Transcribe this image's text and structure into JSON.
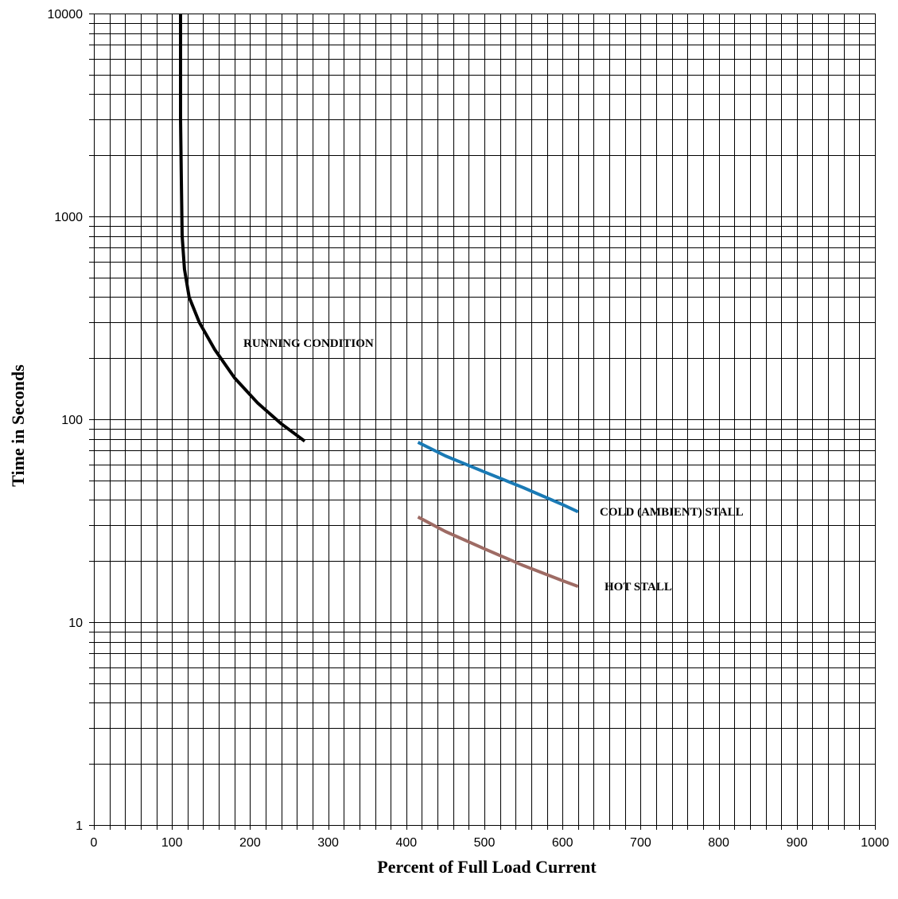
{
  "chart_data": {
    "type": "line",
    "xlabel": "Percent of Full Load Current",
    "ylabel": "Time in Seconds",
    "xlim": [
      0,
      1000
    ],
    "ylim": [
      1,
      10000
    ],
    "yscale": "log",
    "grid": true,
    "x_ticks": [
      "0",
      "100",
      "200",
      "300",
      "400",
      "500",
      "600",
      "700",
      "800",
      "900",
      "1000"
    ],
    "y_ticks": [
      "1",
      "10",
      "100",
      "1000",
      "10000"
    ],
    "x_tick_values": [
      0,
      100,
      200,
      300,
      400,
      500,
      600,
      700,
      800,
      900,
      1000
    ],
    "y_tick_values": [
      1,
      10,
      100,
      1000,
      10000
    ],
    "series": [
      {
        "name": "RUNNING CONDITION",
        "color": "#000000",
        "x": [
          111,
          111,
          112,
          113,
          116,
          122,
          135,
          155,
          180,
          210,
          240,
          270
        ],
        "y": [
          10000,
          3000,
          1500,
          800,
          550,
          400,
          300,
          220,
          160,
          120,
          95,
          78
        ]
      },
      {
        "name": "COLD (AMBIENT) STALL",
        "color": "#1a7ab5",
        "x": [
          415,
          450,
          500,
          550,
          600,
          620
        ],
        "y": [
          77,
          66,
          55,
          46,
          38,
          35
        ]
      },
      {
        "name": "HOT STALL",
        "color": "#9e6b64",
        "x": [
          415,
          450,
          500,
          550,
          600,
          620
        ],
        "y": [
          33,
          28,
          23,
          19,
          16,
          15
        ]
      }
    ]
  }
}
